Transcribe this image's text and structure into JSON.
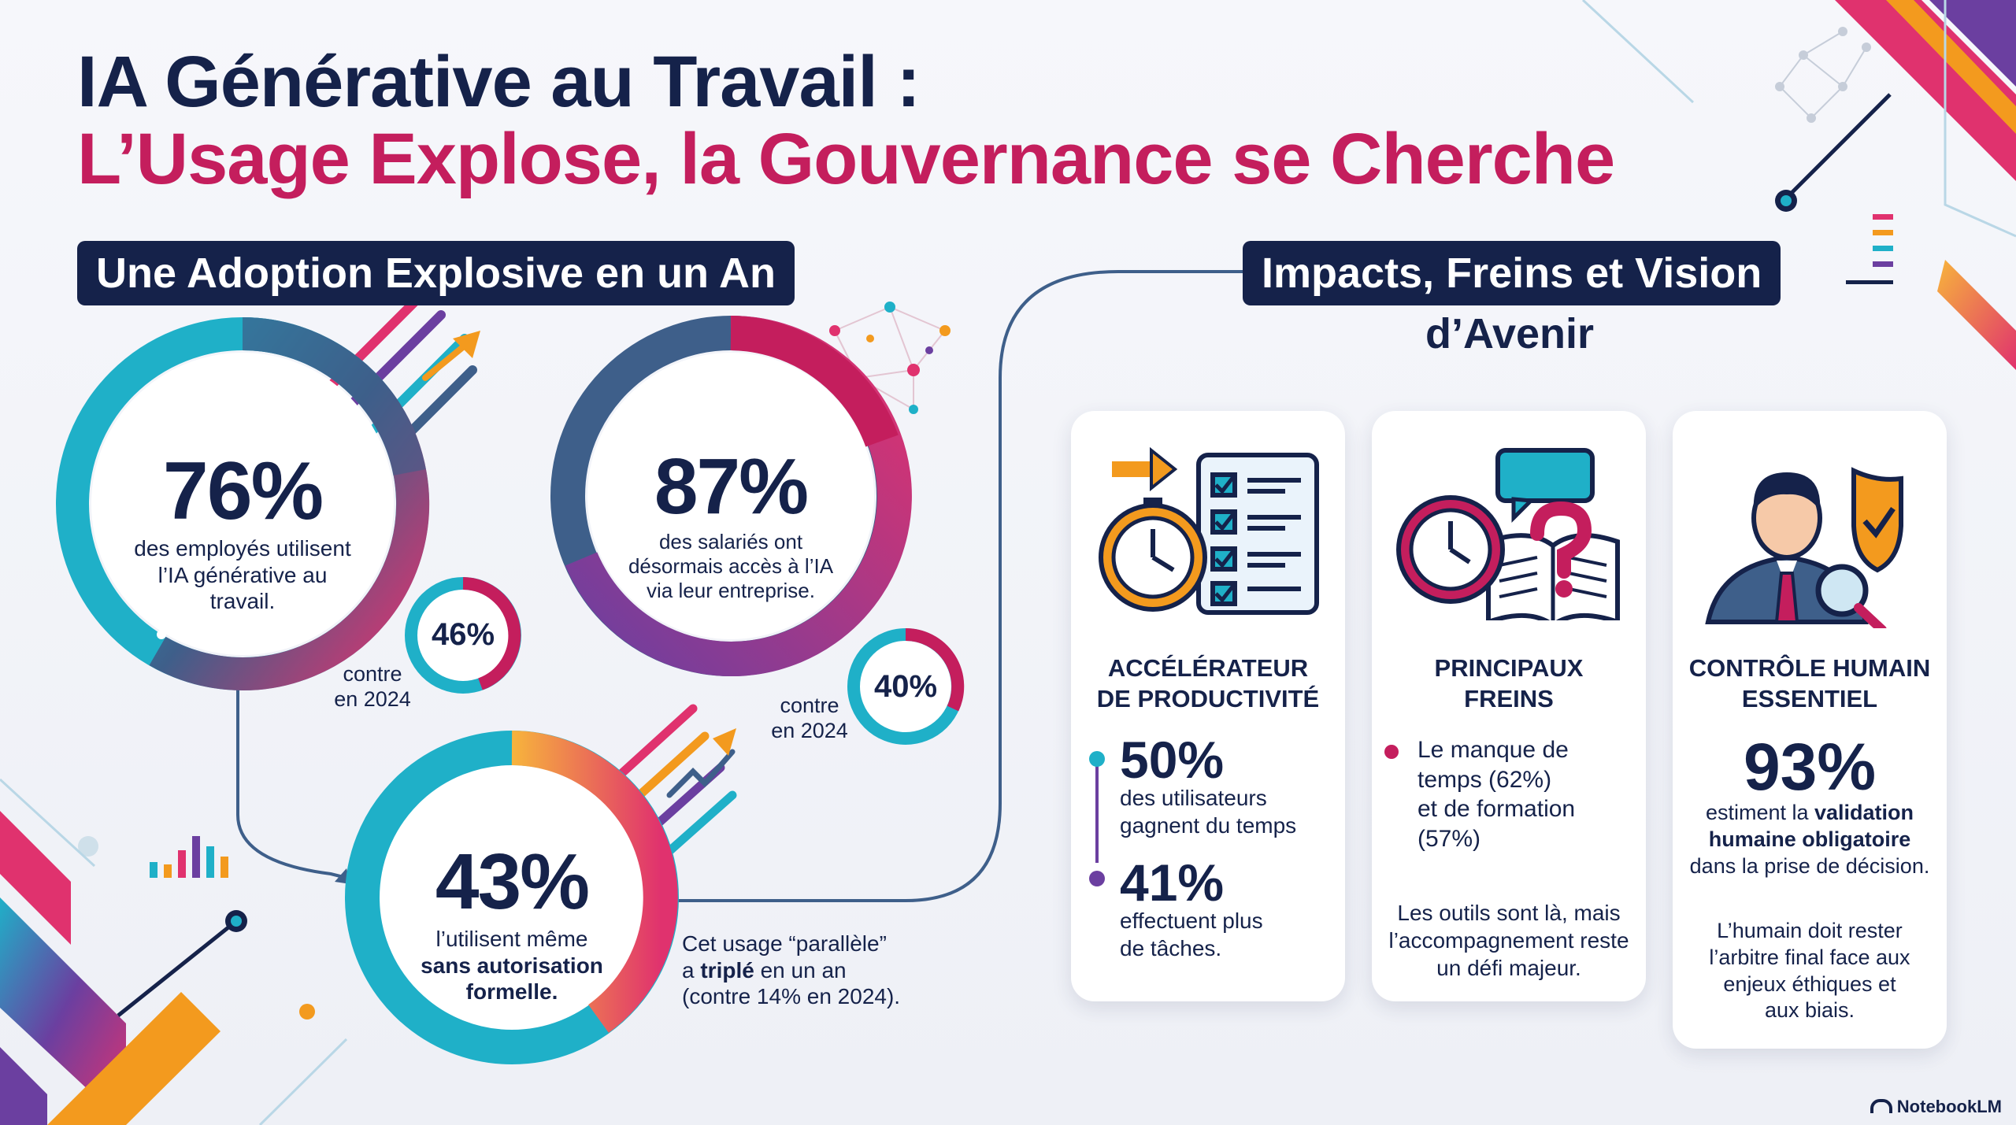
{
  "title": {
    "line1": "IA Générative au Travail :",
    "line2": "L’Usage Explose, la Gouvernance se Cherche"
  },
  "colors": {
    "navy": "#15224a",
    "magenta": "#c41e5d",
    "teal": "#1fb0c8",
    "purple": "#6b3fa0",
    "orange": "#f39a1e",
    "pink": "#e0326e"
  },
  "left_section": {
    "heading": "Une Adoption Explosive en un An",
    "stat1": {
      "value": "76%",
      "desc": [
        "des employés utilisent",
        "l’IA générative au",
        "travail."
      ],
      "compare_value": "46%",
      "compare_text": [
        "contre",
        "en 2024"
      ]
    },
    "stat2": {
      "value": "87%",
      "desc": [
        "des salariés ont",
        "désormais accès à l’IA",
        "via leur entreprise."
      ],
      "compare_value": "40%",
      "compare_text": [
        "contre",
        "en 2024"
      ]
    },
    "stat3": {
      "value": "43%",
      "desc_line1": "l’utilisent même",
      "desc_bold1": "sans autorisation",
      "desc_bold2": "formelle.",
      "note_line1": "Cet usage “parallèle”",
      "note_pre": "a ",
      "note_bold": "triplé",
      "note_post": " en un an",
      "note_line3": "(contre 14% en 2024)."
    }
  },
  "right_section": {
    "heading": "Impacts, Freins et Vision",
    "subheading": "d’Avenir",
    "cards": [
      {
        "title": [
          "ACCÉLÉRATEUR",
          "DE PRODUCTIVITÉ"
        ],
        "icon": "clock-checklist-icon",
        "stat_a": {
          "value": "50%",
          "text": [
            "des utilisateurs",
            "gagnent du temps"
          ]
        },
        "stat_b": {
          "value": "41%",
          "text": [
            "effectuent plus",
            "de tâches."
          ]
        }
      },
      {
        "title": [
          "PRINCIPAUX",
          "FREINS"
        ],
        "icon": "clock-book-question-icon",
        "bullet": [
          "Le manque de",
          "temps (62%)",
          "et de formation",
          "(57%)"
        ],
        "note": [
          "Les outils sont là, mais",
          "l’accompagnement reste",
          "un défi majeur."
        ]
      },
      {
        "title": [
          "CONTRÔLE HUMAIN",
          "ESSENTIEL"
        ],
        "icon": "person-shield-magnifier-icon",
        "stat": {
          "value": "93%",
          "pre": "estiment la ",
          "bold1": "validation",
          "bold2": "humaine obligatoire",
          "post": "dans la prise de décision."
        },
        "note": [
          "L’humain doit rester",
          "l’arbitre final face aux",
          "enjeux éthiques et",
          "aux biais."
        ]
      }
    ]
  },
  "brand": "NotebookLM"
}
